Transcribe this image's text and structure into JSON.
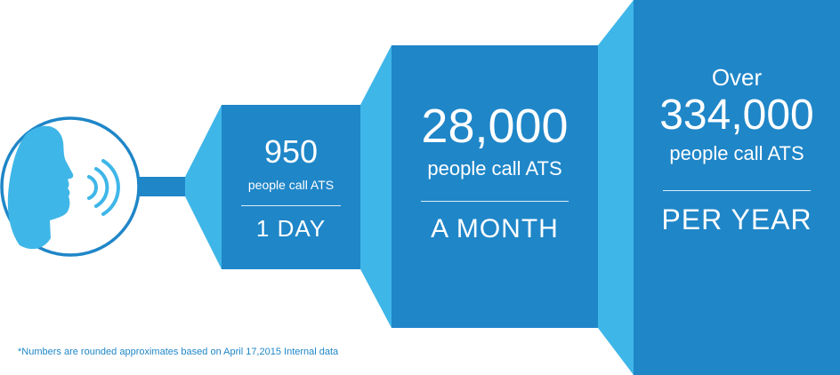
{
  "colors": {
    "dark_blue": "#1f86c8",
    "light_blue": "#3fb6e8",
    "white": "#ffffff"
  },
  "icon": "speaking-person-icon",
  "stages": [
    {
      "prefix": "",
      "number": "950",
      "subtitle": "people call ATS",
      "period": "1 DAY"
    },
    {
      "prefix": "",
      "number": "28,000",
      "subtitle": "people call ATS",
      "period": "A MONTH"
    },
    {
      "prefix": "Over",
      "number": "334,000",
      "subtitle": "people call ATS",
      "period": "PER YEAR"
    }
  ],
  "footnote": {
    "asterisk": "*",
    "text": "Numbers are rounded approximates based on April 17,2015 Internal data"
  }
}
